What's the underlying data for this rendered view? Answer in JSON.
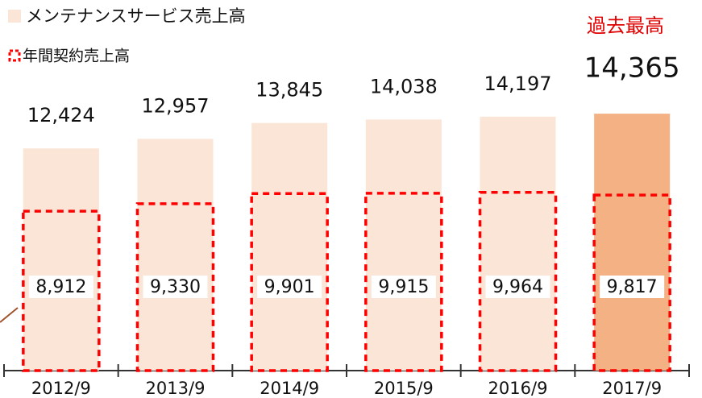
{
  "chart_data": {
    "type": "bar",
    "categories": [
      "2012/9",
      "2013/9",
      "2014/9",
      "2015/9",
      "2016/9",
      "2017/9"
    ],
    "series": [
      {
        "name": "メンテナンスサービス売上高",
        "color": "#fbe5d6",
        "colors": [
          "#fbe5d6",
          "#fbe5d6",
          "#fbe5d6",
          "#fbe5d6",
          "#fbe5d6",
          "#f4b183"
        ],
        "values": [
          12424,
          12957,
          13845,
          14038,
          14197,
          14365
        ],
        "value_labels": [
          "12,424",
          "12,957",
          "13,845",
          "14,038",
          "14,197",
          "14,365"
        ]
      },
      {
        "name": "年間契約売上高",
        "color": "#ff0000",
        "style": "dashed",
        "values": [
          8912,
          9330,
          9901,
          9915,
          9964,
          9817
        ],
        "value_labels": [
          "8,912",
          "9,330",
          "9,901",
          "9,915",
          "9,964",
          "9,817"
        ]
      }
    ],
    "annotation": "過去最高",
    "ylim": [
      0,
      20000
    ]
  }
}
